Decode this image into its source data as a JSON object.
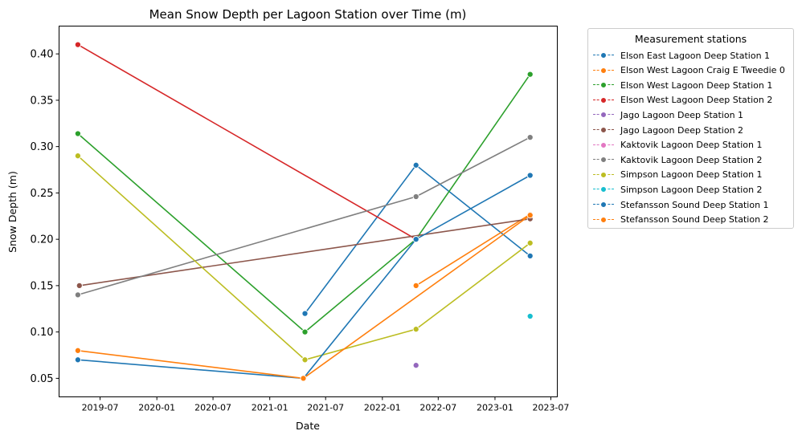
{
  "chart_data": {
    "type": "line",
    "title": "Mean Snow Depth per Lagoon Station over Time (m)",
    "xlabel": "Date",
    "ylabel": "Snow Depth (m)",
    "xlim": [
      "2019-02-18",
      "2023-07-22"
    ],
    "ylim": [
      0.03,
      0.43
    ],
    "x_ticks": [
      "2019-07",
      "2020-01",
      "2020-07",
      "2021-01",
      "2021-07",
      "2022-01",
      "2022-07",
      "2023-01",
      "2023-07"
    ],
    "y_ticks": [
      "0.05",
      "0.10",
      "0.15",
      "0.20",
      "0.25",
      "0.30",
      "0.35",
      "0.40"
    ],
    "grid": false,
    "legend": {
      "title": "Measurement stations",
      "placement": "outside-right"
    },
    "series": [
      {
        "name": "Elson East Lagoon Deep Station 1",
        "color": "#1f77b4",
        "points": [
          [
            "2021-04-25",
            0.12
          ],
          [
            "2022-04-20",
            0.28
          ],
          [
            "2023-04-25",
            0.182
          ]
        ]
      },
      {
        "name": "Elson West Lagoon Craig E Tweedie 0",
        "color": "#ff7f0e",
        "points": [
          [
            "2022-04-20",
            0.15
          ],
          [
            "2023-04-25",
            0.227
          ]
        ]
      },
      {
        "name": "Elson West Lagoon Deep Station 1",
        "color": "#2ca02c",
        "points": [
          [
            "2019-04-20",
            0.314
          ],
          [
            "2021-04-25",
            0.1
          ],
          [
            "2022-04-20",
            0.2
          ],
          [
            "2023-04-25",
            0.378
          ]
        ]
      },
      {
        "name": "Elson West Lagoon Deep Station 2",
        "color": "#d62728",
        "points": [
          [
            "2019-04-20",
            0.41
          ],
          [
            "2022-04-20",
            0.2
          ]
        ]
      },
      {
        "name": "Jago Lagoon Deep Station 1",
        "color": "#9467bd",
        "points": [
          [
            "2022-04-20",
            0.064
          ]
        ]
      },
      {
        "name": "Jago Lagoon Deep Station 2",
        "color": "#8c564b",
        "points": [
          [
            "2019-04-25",
            0.15
          ],
          [
            "2023-04-25",
            0.222
          ]
        ]
      },
      {
        "name": "Kaktovik Lagoon Deep Station 1",
        "color": "#e377c2",
        "points": []
      },
      {
        "name": "Kaktovik Lagoon Deep Station 2",
        "color": "#7f7f7f",
        "points": [
          [
            "2019-04-20",
            0.14
          ],
          [
            "2022-04-20",
            0.246
          ],
          [
            "2023-04-25",
            0.31
          ]
        ]
      },
      {
        "name": "Simpson Lagoon Deep Station 1",
        "color": "#bcbd22",
        "points": [
          [
            "2019-04-20",
            0.29
          ],
          [
            "2021-04-25",
            0.07
          ],
          [
            "2022-04-20",
            0.103
          ],
          [
            "2023-04-25",
            0.196
          ]
        ]
      },
      {
        "name": "Simpson Lagoon Deep Station 2",
        "color": "#17becf",
        "points": [
          [
            "2023-04-25",
            0.117
          ]
        ]
      },
      {
        "name": "Stefansson Sound Deep Station 1",
        "color": "#1f77b4",
        "points": [
          [
            "2019-04-20",
            0.07
          ],
          [
            "2021-04-20",
            0.05
          ],
          [
            "2022-04-20",
            0.2
          ],
          [
            "2023-04-25",
            0.269
          ]
        ]
      },
      {
        "name": "Stefansson Sound Deep Station 2",
        "color": "#ff7f0e",
        "points": [
          [
            "2019-04-20",
            0.08
          ],
          [
            "2021-04-20",
            0.05
          ],
          [
            "2023-04-25",
            0.226
          ]
        ]
      }
    ]
  }
}
